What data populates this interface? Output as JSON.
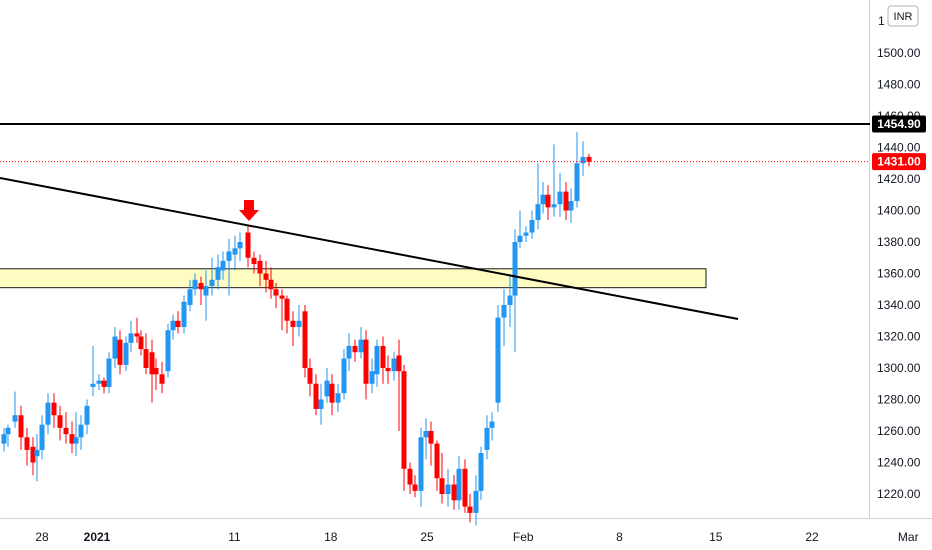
{
  "currency_label": "INR",
  "colors": {
    "up": "#2196f3",
    "down": "#ff0000",
    "resistance_line": "#000000",
    "trendline": "#000000",
    "zone_fill": "#fffcc2",
    "zone_border": "#1a1a1a",
    "last_price_line": "#ff0000",
    "axis_text": "#131722"
  },
  "chart_data": {
    "type": "candlestick",
    "y_ticks": [
      "1500.00",
      "1480.00",
      "1460.00",
      "1440.00",
      "1420.00",
      "1400.00",
      "1380.00",
      "1360.00",
      "1340.00",
      "1320.00",
      "1300.00",
      "1280.00",
      "1260.00",
      "1240.00",
      "1220.00"
    ],
    "partial_top_tick": "1",
    "x_ticks": [
      {
        "label": "28",
        "day": -4,
        "bold": false
      },
      {
        "label": "2021",
        "day": 0,
        "bold": true
      },
      {
        "label": "11",
        "day": 10,
        "bold": false
      },
      {
        "label": "18",
        "day": 17,
        "bold": false
      },
      {
        "label": "25",
        "day": 24,
        "bold": false
      },
      {
        "label": "Feb",
        "day": 31,
        "bold": false
      },
      {
        "label": "8",
        "day": 38,
        "bold": false
      },
      {
        "label": "15",
        "day": 45,
        "bold": false
      },
      {
        "label": "22",
        "day": 52,
        "bold": false
      },
      {
        "label": "Mar",
        "day": 59,
        "bold": false
      }
    ],
    "horizontal_level": {
      "value": 1454.9,
      "label": "1454.90"
    },
    "last_price": {
      "value": 1431.0,
      "label": "1431.00"
    },
    "support_zone": {
      "low": 1351,
      "high": 1363,
      "from_day": -6,
      "to_day": 44
    },
    "trendline": {
      "start": {
        "day": -6,
        "value": 1420
      },
      "end": {
        "day": 47,
        "value": 1331
      }
    },
    "arrow_marker": {
      "day": 11.7,
      "value": 1400,
      "direction": "down"
    },
    "candles": [
      [
        -6,
        1252,
        1262,
        1247,
        1258
      ],
      [
        -5.8,
        1258,
        1268,
        1250,
        1262
      ],
      [
        -5.6,
        1262,
        1272,
        1255,
        1265
      ],
      [
        -5.4,
        1265,
        1272,
        1250,
        1256
      ],
      [
        -5.2,
        1256,
        1270,
        1254,
        1266
      ],
      [
        -5.0,
        1266,
        1285,
        1262,
        1280
      ],
      [
        -4.8,
        1268,
        1278,
        1255,
        1262
      ],
      [
        -4.6,
        1262,
        1266,
        1245,
        1250
      ],
      [
        -4.4,
        1250,
        1266,
        1244,
        1258
      ],
      [
        -4.2,
        1256,
        1262,
        1238,
        1248
      ],
      [
        -4.0,
        1253,
        1258,
        1232,
        1240
      ],
      [
        -3.8,
        1240,
        1252,
        1228,
        1248
      ],
      [
        -3.6,
        1248,
        1260,
        1238,
        1252
      ],
      [
        -3.4,
        1244,
        1268,
        1240,
        1264
      ],
      [
        -3.2,
        1264,
        1284,
        1258,
        1280
      ],
      [
        -3.0,
        1280,
        1290,
        1262,
        1270
      ],
      [
        -2.8,
        1270,
        1276,
        1254,
        1262
      ],
      [
        -2.6,
        1262,
        1274,
        1252,
        1258
      ],
      [
        -2.4,
        1258,
        1274,
        1246,
        1252
      ],
      [
        -2.2,
        1252,
        1272,
        1244,
        1264
      ],
      [
        -1.8,
        1264,
        1280,
        1258,
        1278
      ],
      [
        -1.6,
        1288,
        1318,
        1282,
        1290
      ],
      [
        -1.4,
        1290,
        1302,
        1286,
        1292
      ],
      [
        -1.2,
        1292,
        1294,
        1284,
        1288
      ],
      [
        -1.0,
        1288,
        1310,
        1284,
        1306
      ],
      [
        -0.8,
        1306,
        1326,
        1300,
        1320
      ],
      [
        -0.6,
        1318,
        1324,
        1296,
        1302
      ],
      [
        -0.4,
        1302,
        1320,
        1298,
        1316
      ],
      [
        -0.2,
        1316,
        1330,
        1310,
        1322
      ],
      [
        0.0,
        1322,
        1332,
        1316,
        1320
      ],
      [
        0.2,
        1320,
        1324,
        1308,
        1312
      ],
      [
        0.4,
        1304,
        1332,
        1280,
        1322
      ],
      [
        0.6,
        1312,
        1322,
        1296,
        1300
      ],
      [
        0.8,
        1300,
        1306,
        1286,
        1298
      ],
      [
        1.0,
        1298,
        1328,
        1294,
        1324
      ],
      [
        1.2,
        1324,
        1334,
        1318,
        1330
      ],
      [
        1.4,
        1330,
        1336,
        1322,
        1326
      ],
      [
        1.6,
        1326,
        1346,
        1322,
        1342
      ],
      [
        1.8,
        1342,
        1356,
        1338,
        1350
      ],
      [
        2.0,
        1350,
        1360,
        1348,
        1354
      ],
      [
        2.2,
        1352,
        1358,
        1340,
        1346
      ],
      [
        2.4,
        1346,
        1362,
        1342,
        1352
      ],
      [
        2.6,
        1352,
        1368,
        1346,
        1358
      ],
      [
        2.8,
        1358,
        1372,
        1350,
        1366
      ],
      [
        3.0,
        1366,
        1378,
        1360,
        1372
      ],
      [
        3.2,
        1372,
        1380,
        1362,
        1370
      ],
      [
        3.4,
        1370,
        1382,
        1366,
        1378
      ],
      [
        3.6,
        1378,
        1388,
        1372,
        1384
      ],
      [
        3.8,
        1384,
        1390,
        1368,
        1374
      ],
      [
        4.0,
        1374,
        1378,
        1360,
        1366
      ],
      [
        4.2,
        1366,
        1370,
        1350,
        1356
      ],
      [
        4.4,
        1356,
        1368,
        1348,
        1362
      ],
      [
        4.6,
        1362,
        1366,
        1344,
        1350
      ],
      [
        4.8,
        1350,
        1354,
        1338,
        1344
      ],
      [
        5.0,
        1344,
        1350,
        1324,
        1330
      ],
      [
        5.2,
        1330,
        1336,
        1318,
        1326
      ],
      [
        5.4,
        1326,
        1338,
        1322,
        1334
      ],
      [
        5.6,
        1334,
        1340,
        1318,
        1322
      ],
      [
        5.8,
        1322,
        1326,
        1298,
        1302
      ],
      [
        6.0,
        1302,
        1306,
        1282,
        1286
      ],
      [
        6.2,
        1286,
        1292,
        1270,
        1274
      ],
      [
        6.4,
        1274,
        1296,
        1268,
        1292
      ],
      [
        6.6,
        1292,
        1300,
        1278,
        1282
      ],
      [
        6.8,
        1282,
        1290,
        1264,
        1268
      ],
      [
        7.0,
        1268,
        1292,
        1264,
        1288
      ],
      [
        7.2,
        1288,
        1314,
        1282,
        1310
      ],
      [
        7.4,
        1310,
        1322,
        1304,
        1318
      ],
      [
        7.6,
        1318,
        1326,
        1312,
        1320
      ]
    ]
  }
}
